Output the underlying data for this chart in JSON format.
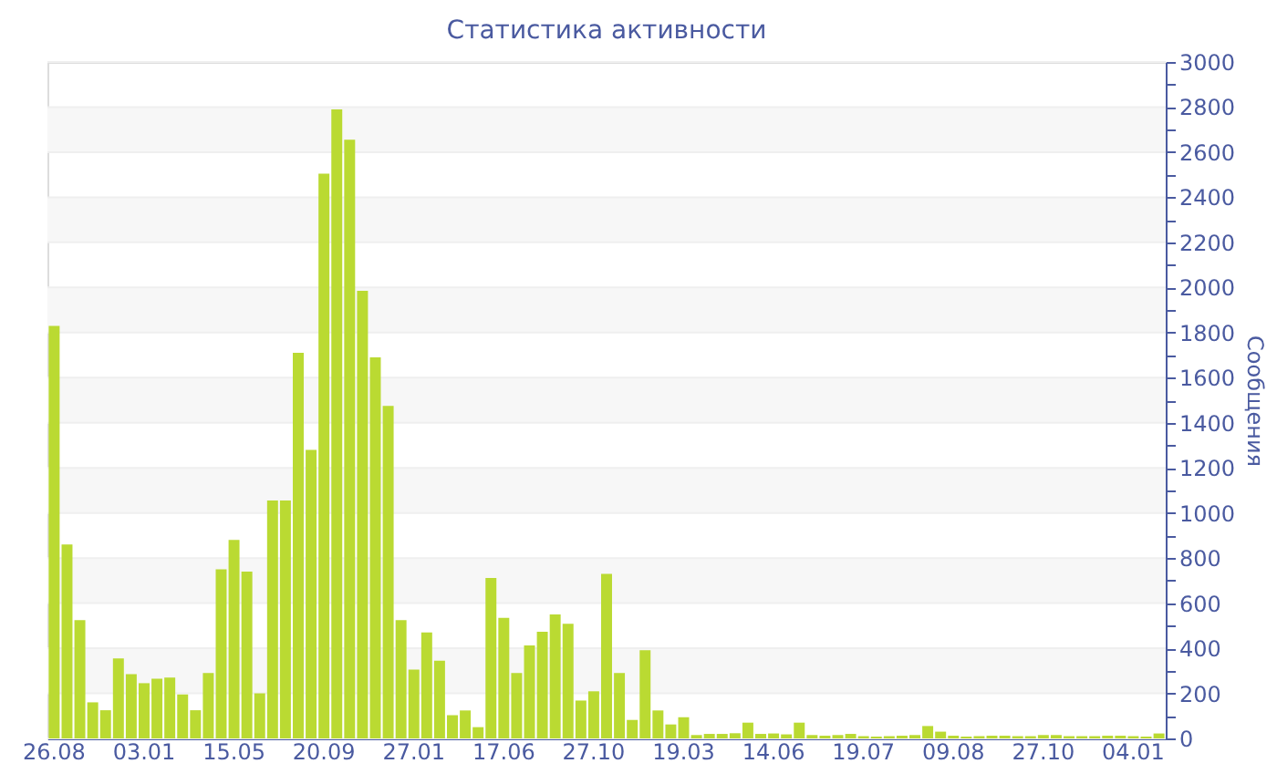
{
  "chart_data": {
    "type": "bar",
    "title": "Статистика активности",
    "ylabel": "Сообщения",
    "color": "#bada32",
    "grid": true,
    "categories": [
      "26.08",
      null,
      null,
      null,
      null,
      null,
      null,
      "03.01",
      null,
      null,
      null,
      null,
      null,
      null,
      "15.05",
      null,
      null,
      null,
      null,
      null,
      null,
      "20.09",
      null,
      null,
      null,
      null,
      null,
      null,
      "27.01",
      null,
      null,
      null,
      null,
      null,
      null,
      "17.06",
      null,
      null,
      null,
      null,
      null,
      null,
      "27.10",
      null,
      null,
      null,
      null,
      null,
      null,
      "19.03",
      null,
      null,
      null,
      null,
      null,
      null,
      "14.06",
      null,
      null,
      null,
      null,
      null,
      null,
      "19.07",
      null,
      null,
      null,
      null,
      null,
      null,
      "09.08",
      null,
      null,
      null,
      null,
      null,
      null,
      "27.10",
      null,
      null,
      null,
      null,
      null,
      null,
      "04.01",
      null,
      null
    ],
    "values": [
      1830,
      860,
      525,
      160,
      125,
      355,
      285,
      245,
      265,
      270,
      195,
      125,
      290,
      750,
      880,
      740,
      200,
      1055,
      1055,
      1710,
      1280,
      2505,
      2790,
      2655,
      1985,
      1690,
      1475,
      525,
      305,
      470,
      345,
      103,
      124,
      50,
      712,
      535,
      290,
      412,
      473,
      550,
      508,
      168,
      209,
      730,
      290,
      82,
      391,
      124,
      62,
      94,
      15,
      20,
      20,
      23,
      70,
      20,
      22,
      18,
      70,
      15,
      12,
      15,
      20,
      10,
      8,
      10,
      12,
      15,
      55,
      30,
      12,
      8,
      10,
      12,
      12,
      10,
      10,
      15,
      15,
      10,
      10,
      10,
      12,
      12,
      10,
      8,
      22
    ],
    "ylim": [
      0,
      3000
    ],
    "yticks": [
      0,
      {
        "value": 100,
        "label": null
      },
      200,
      {
        "value": 300,
        "label": null
      },
      400,
      {
        "value": 500,
        "label": null
      },
      600,
      {
        "value": 700,
        "label": null
      },
      800,
      {
        "value": 900,
        "label": null
      },
      1000,
      {
        "value": 1100,
        "label": null
      },
      1200,
      {
        "value": 1300,
        "label": null
      },
      1400,
      {
        "value": 1500,
        "label": null
      },
      1600,
      {
        "value": 1700,
        "label": null
      },
      1800,
      {
        "value": 1900,
        "label": null
      },
      2000,
      {
        "value": 2100,
        "label": null
      },
      2200,
      {
        "value": 2300,
        "label": null
      },
      2400,
      {
        "value": 2500,
        "label": null
      },
      2600,
      {
        "value": 2700,
        "label": null
      },
      2800,
      {
        "value": 2900,
        "label": null
      },
      3000
    ]
  }
}
